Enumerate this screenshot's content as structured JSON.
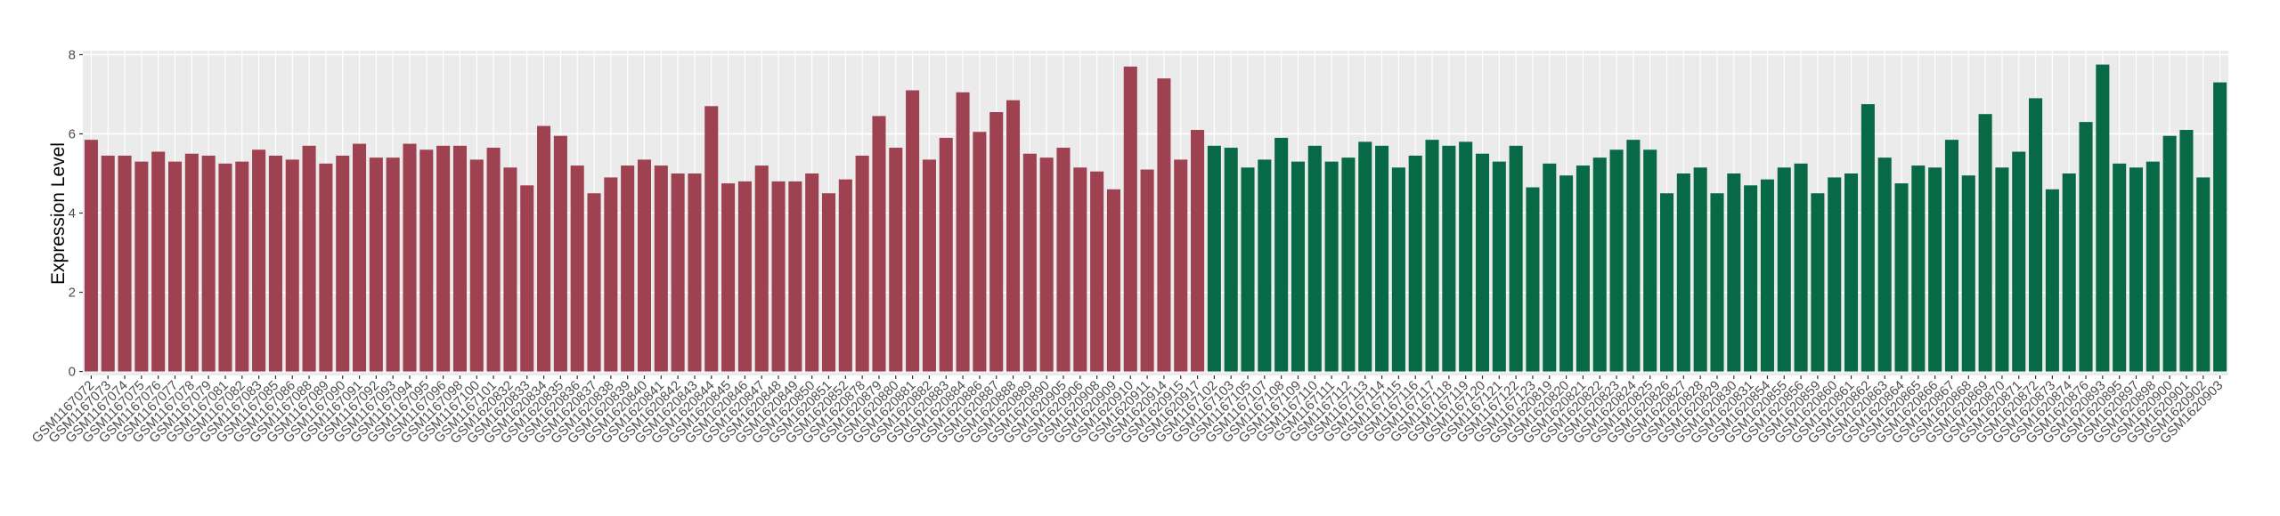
{
  "chart_data": {
    "type": "bar",
    "y_label": "Expression Level",
    "categories": [
      "GSM1167072",
      "GSM1167073",
      "GSM1167074",
      "GSM1167075",
      "GSM1167076",
      "GSM1167077",
      "GSM1167078",
      "GSM1167079",
      "GSM1167081",
      "GSM1167082",
      "GSM1167083",
      "GSM1167085",
      "GSM1167086",
      "GSM1167088",
      "GSM1167089",
      "GSM1167090",
      "GSM1167091",
      "GSM1167092",
      "GSM1167093",
      "GSM1167094",
      "GSM1167095",
      "GSM1167096",
      "GSM1167098",
      "GSM1167100",
      "GSM1167101",
      "GSM1620832",
      "GSM1620833",
      "GSM1620834",
      "GSM1620835",
      "GSM1620836",
      "GSM1620837",
      "GSM1620838",
      "GSM1620839",
      "GSM1620840",
      "GSM1620841",
      "GSM1620842",
      "GSM1620843",
      "GSM1620844",
      "GSM1620845",
      "GSM1620846",
      "GSM1620847",
      "GSM1620848",
      "GSM1620849",
      "GSM1620850",
      "GSM1620851",
      "GSM1620852",
      "GSM1620878",
      "GSM1620879",
      "GSM1620880",
      "GSM1620881",
      "GSM1620882",
      "GSM1620883",
      "GSM1620884",
      "GSM1620886",
      "GSM1620887",
      "GSM1620888",
      "GSM1620889",
      "GSM1620890",
      "GSM1620905",
      "GSM1620906",
      "GSM1620908",
      "GSM1620909",
      "GSM1620910",
      "GSM1620911",
      "GSM1620914",
      "GSM1620915",
      "GSM1620917",
      "GSM1167102",
      "GSM1167103",
      "GSM1167105",
      "GSM1167107",
      "GSM1167108",
      "GSM1167109",
      "GSM1167110",
      "GSM1167111",
      "GSM1167112",
      "GSM1167113",
      "GSM1167114",
      "GSM1167115",
      "GSM1167116",
      "GSM1167117",
      "GSM1167118",
      "GSM1167119",
      "GSM1167120",
      "GSM1167121",
      "GSM1167122",
      "GSM1167123",
      "GSM1620819",
      "GSM1620820",
      "GSM1620821",
      "GSM1620822",
      "GSM1620823",
      "GSM1620824",
      "GSM1620825",
      "GSM1620826",
      "GSM1620827",
      "GSM1620828",
      "GSM1620829",
      "GSM1620830",
      "GSM1620831",
      "GSM1620854",
      "GSM1620855",
      "GSM1620856",
      "GSM1620859",
      "GSM1620860",
      "GSM1620861",
      "GSM1620862",
      "GSM1620863",
      "GSM1620864",
      "GSM1620865",
      "GSM1620866",
      "GSM1620867",
      "GSM1620868",
      "GSM1620869",
      "GSM1620870",
      "GSM1620871",
      "GSM1620872",
      "GSM1620873",
      "GSM1620874",
      "GSM1620876",
      "GSM1620893",
      "GSM1620895",
      "GSM1620897",
      "GSM1620898",
      "GSM1620900",
      "GSM1620901",
      "GSM1620902",
      "GSM1620903"
    ],
    "values": [
      5.85,
      5.45,
      5.45,
      5.3,
      5.55,
      5.3,
      5.5,
      5.45,
      5.25,
      5.3,
      5.6,
      5.45,
      5.35,
      5.7,
      5.25,
      5.45,
      5.75,
      5.4,
      5.4,
      5.75,
      5.6,
      5.7,
      5.7,
      5.35,
      5.65,
      5.15,
      4.7,
      6.2,
      5.95,
      5.2,
      4.5,
      4.9,
      5.2,
      5.35,
      5.2,
      5.0,
      5.0,
      6.7,
      4.75,
      4.8,
      5.2,
      4.8,
      4.8,
      5.0,
      4.5,
      4.85,
      5.45,
      6.45,
      5.65,
      7.1,
      5.35,
      5.9,
      7.05,
      6.05,
      6.55,
      6.85,
      5.5,
      5.4,
      5.65,
      5.15,
      5.05,
      4.6,
      7.7,
      5.1,
      7.4,
      5.35,
      6.1,
      5.7,
      5.65,
      5.15,
      5.35,
      5.9,
      5.3,
      5.7,
      5.3,
      5.4,
      5.8,
      5.7,
      5.15,
      5.45,
      5.85,
      5.7,
      5.8,
      5.5,
      5.3,
      5.7,
      4.65,
      5.25,
      4.95,
      5.2,
      5.4,
      5.6,
      5.85,
      5.6,
      4.5,
      5.0,
      5.15,
      4.5,
      5.0,
      4.7,
      4.85,
      5.15,
      5.25,
      4.5,
      4.9,
      5.0,
      6.75,
      5.4,
      4.75,
      5.2,
      5.15,
      5.85,
      4.95,
      6.5,
      5.15,
      5.55,
      6.9,
      4.6,
      5.0,
      6.3,
      7.75,
      5.25,
      5.15,
      5.3,
      5.95,
      6.1,
      4.9,
      7.3
    ],
    "colors": [
      "#9e4150",
      "#9e4150",
      "#9e4150",
      "#9e4150",
      "#9e4150",
      "#9e4150",
      "#9e4150",
      "#9e4150",
      "#9e4150",
      "#9e4150",
      "#9e4150",
      "#9e4150",
      "#9e4150",
      "#9e4150",
      "#9e4150",
      "#9e4150",
      "#9e4150",
      "#9e4150",
      "#9e4150",
      "#9e4150",
      "#9e4150",
      "#9e4150",
      "#9e4150",
      "#9e4150",
      "#9e4150",
      "#9e4150",
      "#9e4150",
      "#9e4150",
      "#9e4150",
      "#9e4150",
      "#9e4150",
      "#9e4150",
      "#9e4150",
      "#9e4150",
      "#9e4150",
      "#9e4150",
      "#9e4150",
      "#9e4150",
      "#9e4150",
      "#9e4150",
      "#9e4150",
      "#9e4150",
      "#9e4150",
      "#9e4150",
      "#9e4150",
      "#9e4150",
      "#9e4150",
      "#9e4150",
      "#9e4150",
      "#9e4150",
      "#9e4150",
      "#9e4150",
      "#9e4150",
      "#9e4150",
      "#9e4150",
      "#9e4150",
      "#9e4150",
      "#9e4150",
      "#9e4150",
      "#9e4150",
      "#9e4150",
      "#9e4150",
      "#9e4150",
      "#9e4150",
      "#9e4150",
      "#9e4150",
      "#9e4150",
      "#076946",
      "#076946",
      "#076946",
      "#076946",
      "#076946",
      "#076946",
      "#076946",
      "#076946",
      "#076946",
      "#076946",
      "#076946",
      "#076946",
      "#076946",
      "#076946",
      "#076946",
      "#076946",
      "#076946",
      "#076946",
      "#076946",
      "#076946",
      "#076946",
      "#076946",
      "#076946",
      "#076946",
      "#076946",
      "#076946",
      "#076946",
      "#076946",
      "#076946",
      "#076946",
      "#076946",
      "#076946",
      "#076946",
      "#076946",
      "#076946",
      "#076946",
      "#076946",
      "#076946",
      "#076946",
      "#076946",
      "#076946",
      "#076946",
      "#076946",
      "#076946",
      "#076946",
      "#076946",
      "#076946",
      "#076946",
      "#076946",
      "#076946",
      "#076946",
      "#076946",
      "#076946",
      "#076946",
      "#076946",
      "#076946",
      "#076946",
      "#076946",
      "#076946",
      "#076946",
      "#076946"
    ],
    "ylim": [
      -0.1,
      8.1
    ],
    "yticks": [
      0,
      2,
      4,
      6,
      8
    ],
    "grid": true
  }
}
